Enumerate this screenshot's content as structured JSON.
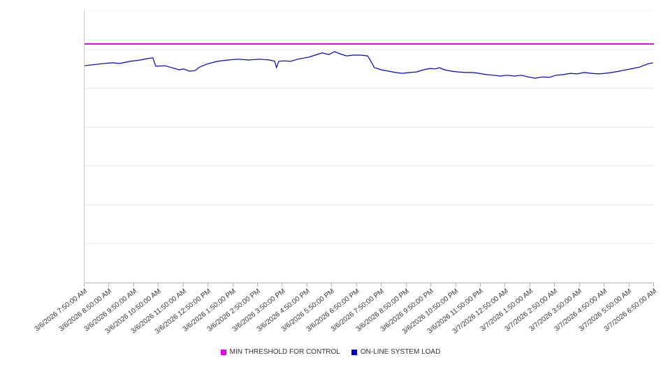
{
  "colors": {
    "background": "#ffffff",
    "grid": "#e9e9e9",
    "axis": "#b5b5b5",
    "text": "#333333",
    "threshold": "#ee00ee",
    "load": "#0000cc"
  },
  "chart_data": {
    "type": "line",
    "title": "",
    "xlabel": "",
    "ylabel": "",
    "ylim": [
      0,
      100
    ],
    "grid": "horizontal",
    "legend_position": "bottom",
    "gridline_values": [
      14.3,
      28.6,
      42.9,
      57.1,
      71.4,
      85.7,
      100
    ],
    "categories": [
      "3/6/2026 7:50:00 AM",
      "3/6/2026 8:50:00 AM",
      "3/6/2026 9:50:00 AM",
      "3/6/2026 10:50:00 AM",
      "3/6/2026 11:50:00 AM",
      "3/6/2026 12:50:00 PM",
      "3/6/2026 1:50:00 PM",
      "3/6/2026 2:50:00 PM",
      "3/6/2026 3:50:00 PM",
      "3/6/2026 4:50:00 PM",
      "3/6/2026 5:50:00 PM",
      "3/6/2026 6:50:00 PM",
      "3/6/2026 7:50:00 PM",
      "3/6/2026 8:50:00 PM",
      "3/6/2026 9:50:00 PM",
      "3/6/2026 10:50:00 PM",
      "3/6/2026 11:50:00 PM",
      "3/7/2026 12:50:00 AM",
      "3/7/2026 1:50:00 AM",
      "3/7/2026 2:50:00 AM",
      "3/7/2026 3:50:00 AM",
      "3/7/2026 4:50:00 AM",
      "3/7/2026 5:50:00 AM",
      "3/7/2026 6:50:00 AM"
    ],
    "series": [
      {
        "name": "MIN THRESHOLD FOR CONTROL",
        "type": "constant-line",
        "color": "#ee00ee",
        "value": 87.7
      },
      {
        "name": "ON-LINE SYSTEM LOAD",
        "type": "line",
        "color": "#0000cc",
        "points": [
          [
            0,
            79.7
          ],
          [
            2.5,
            80.3
          ],
          [
            4.9,
            80.8
          ],
          [
            6.1,
            80.5
          ],
          [
            8.0,
            81.3
          ],
          [
            9.8,
            81.8
          ],
          [
            11.0,
            82.3
          ],
          [
            12.0,
            82.6
          ],
          [
            12.5,
            79.5
          ],
          [
            14.1,
            79.7
          ],
          [
            15.3,
            79.0
          ],
          [
            16.6,
            78.2
          ],
          [
            17.4,
            78.5
          ],
          [
            18.4,
            77.7
          ],
          [
            19.4,
            77.9
          ],
          [
            20.2,
            79.2
          ],
          [
            21.5,
            80.3
          ],
          [
            23.3,
            81.3
          ],
          [
            25.2,
            81.8
          ],
          [
            27.0,
            82.1
          ],
          [
            28.8,
            81.8
          ],
          [
            30.7,
            82.1
          ],
          [
            32.5,
            81.8
          ],
          [
            33.4,
            81.3
          ],
          [
            33.7,
            79.0
          ],
          [
            34.1,
            81.3
          ],
          [
            35.0,
            81.5
          ],
          [
            36.2,
            81.3
          ],
          [
            37.4,
            82.1
          ],
          [
            39.3,
            82.8
          ],
          [
            40.5,
            83.6
          ],
          [
            41.7,
            84.4
          ],
          [
            42.9,
            83.8
          ],
          [
            43.9,
            84.9
          ],
          [
            44.8,
            84.1
          ],
          [
            46.0,
            83.3
          ],
          [
            47.2,
            83.6
          ],
          [
            48.5,
            83.6
          ],
          [
            49.7,
            83.3
          ],
          [
            50.3,
            81.3
          ],
          [
            50.9,
            79.0
          ],
          [
            52.1,
            78.2
          ],
          [
            53.4,
            77.7
          ],
          [
            54.6,
            77.2
          ],
          [
            55.8,
            76.9
          ],
          [
            57.1,
            77.2
          ],
          [
            58.3,
            77.4
          ],
          [
            59.5,
            78.2
          ],
          [
            60.7,
            78.7
          ],
          [
            61.6,
            78.5
          ],
          [
            62.3,
            79.0
          ],
          [
            63.2,
            78.2
          ],
          [
            64.4,
            77.7
          ],
          [
            65.6,
            77.4
          ],
          [
            66.9,
            77.2
          ],
          [
            68.1,
            77.2
          ],
          [
            69.3,
            76.9
          ],
          [
            70.6,
            76.4
          ],
          [
            71.8,
            76.2
          ],
          [
            73.0,
            75.9
          ],
          [
            74.2,
            76.2
          ],
          [
            75.5,
            75.9
          ],
          [
            76.7,
            76.2
          ],
          [
            77.9,
            75.6
          ],
          [
            79.1,
            75.1
          ],
          [
            80.4,
            75.6
          ],
          [
            81.6,
            75.4
          ],
          [
            82.8,
            76.2
          ],
          [
            84.0,
            76.4
          ],
          [
            85.3,
            76.9
          ],
          [
            86.5,
            76.7
          ],
          [
            87.7,
            77.2
          ],
          [
            89.0,
            76.9
          ],
          [
            90.2,
            76.7
          ],
          [
            91.4,
            76.9
          ],
          [
            92.6,
            77.2
          ],
          [
            93.9,
            77.7
          ],
          [
            95.1,
            78.2
          ],
          [
            96.3,
            78.7
          ],
          [
            97.5,
            79.2
          ],
          [
            98.8,
            80.3
          ],
          [
            99.8,
            80.8
          ]
        ]
      }
    ]
  }
}
